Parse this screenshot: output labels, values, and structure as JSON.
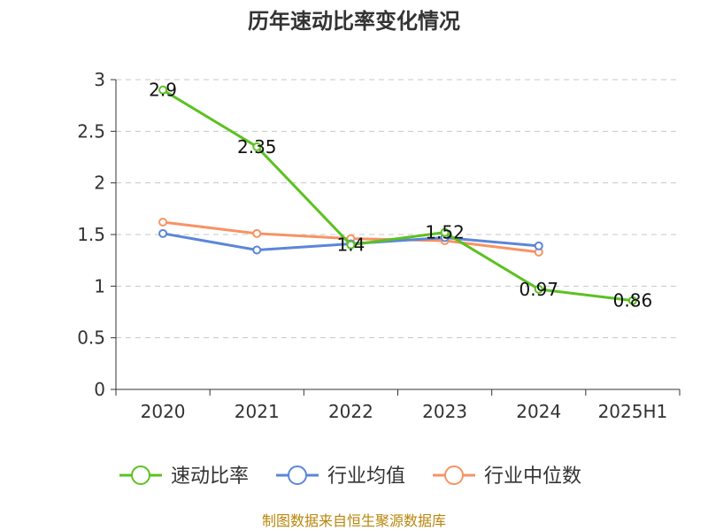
{
  "chart_data": {
    "type": "line",
    "title": "历年速动比率变化情况",
    "categories": [
      "2020",
      "2021",
      "2022",
      "2023",
      "2024",
      "2025H1"
    ],
    "ylim": [
      0,
      3
    ],
    "yticks": [
      0,
      0.5,
      1,
      1.5,
      2,
      2.5,
      3
    ],
    "ytick_labels": [
      "0",
      "0.5",
      "1",
      "1.5",
      "2",
      "2.5",
      "3"
    ],
    "grid": true,
    "legend_position": "bottom",
    "series": [
      {
        "name": "速动比率",
        "color": "#5cc122",
        "values": [
          2.9,
          2.35,
          1.4,
          1.52,
          0.97,
          0.86
        ],
        "data_labels": [
          "2.9",
          "2.35",
          "1.4",
          "1.52",
          "0.97",
          "0.86"
        ]
      },
      {
        "name": "行业均值",
        "color": "#5b86d9",
        "values": [
          1.51,
          1.35,
          1.41,
          1.47,
          1.39,
          null
        ]
      },
      {
        "name": "行业中位数",
        "color": "#f79364",
        "values": [
          1.62,
          1.51,
          1.46,
          1.44,
          1.33,
          null
        ]
      }
    ],
    "source": "制图数据来自恒生聚源数据库"
  }
}
